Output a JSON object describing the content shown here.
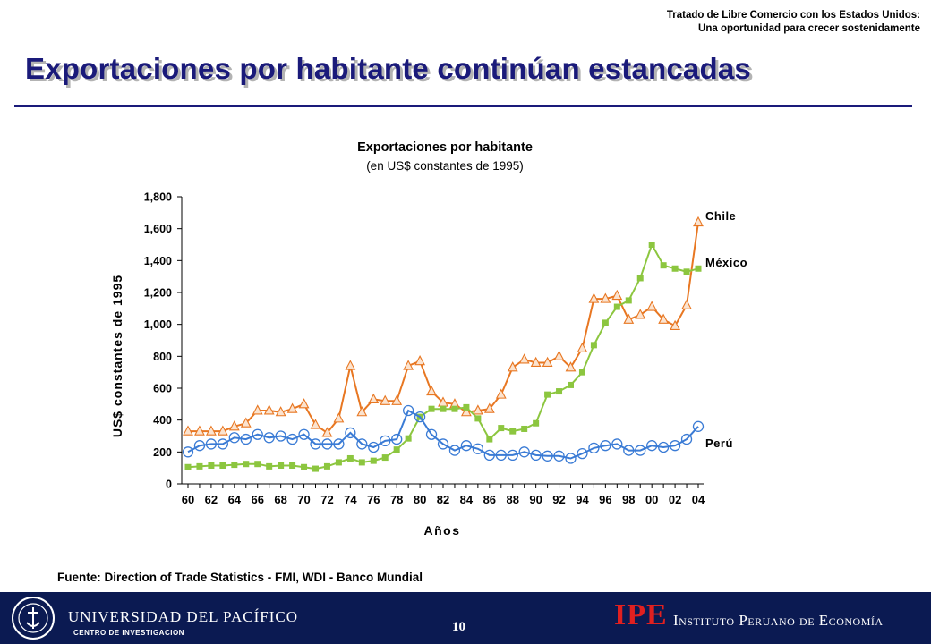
{
  "header": {
    "line1": "Tratado de Libre Comercio con los Estados Unidos:",
    "line2": "Una oportunidad para crecer sostenidamente"
  },
  "slide_title": "Exportaciones por habitante continúan estancadas",
  "chart_data": {
    "type": "line",
    "title": "Exportaciones por habitante",
    "subtitle": "(en US$ constantes de 1995)",
    "xlabel": "Años",
    "ylabel": "US$ constantes de 1995",
    "ylim": [
      0,
      1800
    ],
    "yticks": [
      0,
      200,
      400,
      600,
      800,
      1000,
      1200,
      1400,
      1600,
      1800
    ],
    "ytick_labels": [
      "0",
      "200",
      "400",
      "600",
      "800",
      "1,000",
      "1,200",
      "1,400",
      "1,600",
      "1,800"
    ],
    "xlim": [
      1960,
      2004
    ],
    "xticks": [
      1960,
      1962,
      1964,
      1966,
      1968,
      1970,
      1972,
      1974,
      1976,
      1978,
      1980,
      1982,
      1984,
      1986,
      1988,
      1990,
      1992,
      1994,
      1996,
      1998,
      2000,
      2002,
      2004
    ],
    "xtick_labels": [
      "60",
      "62",
      "64",
      "66",
      "68",
      "70",
      "72",
      "74",
      "76",
      "78",
      "80",
      "82",
      "84",
      "86",
      "88",
      "90",
      "92",
      "94",
      "96",
      "98",
      "00",
      "02",
      "04"
    ],
    "grid": false,
    "legend": "direct labels at right end of lines",
    "x": [
      1960,
      1961,
      1962,
      1963,
      1964,
      1965,
      1966,
      1967,
      1968,
      1969,
      1970,
      1971,
      1972,
      1973,
      1974,
      1975,
      1976,
      1977,
      1978,
      1979,
      1980,
      1981,
      1982,
      1983,
      1984,
      1985,
      1986,
      1987,
      1988,
      1989,
      1990,
      1991,
      1992,
      1993,
      1994,
      1995,
      1996,
      1997,
      1998,
      1999,
      2000,
      2001,
      2002,
      2003,
      2004
    ],
    "series": [
      {
        "name": "Chile",
        "color": "#e87722",
        "marker": "triangle",
        "values": [
          330,
          330,
          330,
          330,
          360,
          380,
          460,
          460,
          450,
          470,
          500,
          370,
          320,
          410,
          740,
          450,
          530,
          520,
          520,
          740,
          770,
          580,
          510,
          500,
          450,
          460,
          470,
          560,
          730,
          780,
          760,
          760,
          800,
          730,
          850,
          1160,
          1160,
          1180,
          1030,
          1060,
          1110,
          1030,
          990,
          1120,
          1640
        ]
      },
      {
        "name": "México",
        "color": "#8cc63f",
        "marker": "square",
        "values": [
          105,
          110,
          115,
          115,
          120,
          125,
          125,
          110,
          115,
          115,
          105,
          95,
          110,
          135,
          160,
          135,
          145,
          165,
          215,
          285,
          420,
          470,
          470,
          470,
          480,
          410,
          280,
          350,
          330,
          345,
          380,
          560,
          580,
          620,
          700,
          870,
          1010,
          1110,
          1150,
          1290,
          1500,
          1370,
          1350,
          1330,
          1350
        ]
      },
      {
        "name": "Perú",
        "color": "#3a7bd5",
        "marker": "circle",
        "values": [
          200,
          240,
          250,
          250,
          290,
          280,
          310,
          290,
          300,
          280,
          310,
          250,
          250,
          250,
          320,
          250,
          230,
          270,
          280,
          460,
          420,
          310,
          250,
          210,
          240,
          220,
          180,
          180,
          180,
          200,
          180,
          175,
          175,
          160,
          190,
          225,
          240,
          250,
          210,
          210,
          240,
          230,
          240,
          280,
          360
        ]
      }
    ]
  },
  "source_note": "Fuente: Direction of Trade Statistics - FMI, WDI - Banco Mundial",
  "footer": {
    "university": "UNIVERSIDAD DEL PACÍFICO",
    "research_center": "CENTRO DE INVESTIGACION",
    "page_number": "10",
    "ipe_logo": "IPE",
    "ipe_name": "Instituto Peruano de Economía"
  }
}
